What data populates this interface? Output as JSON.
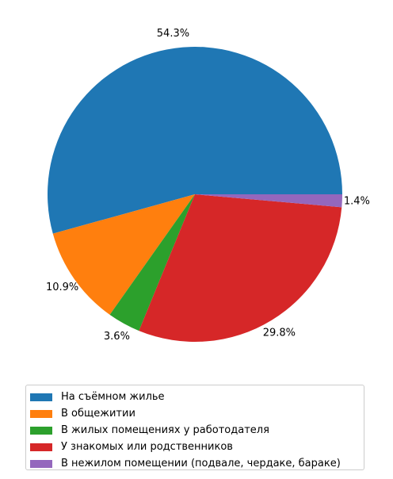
{
  "chart_data": {
    "type": "pie",
    "slices": [
      {
        "label": "На съёмном жилье",
        "value": 54.3,
        "value_label": "54.3%",
        "color": "#1f77b4"
      },
      {
        "label": "В общежитии",
        "value": 10.9,
        "value_label": "10.9%",
        "color": "#ff7f0e"
      },
      {
        "label": "В жилых помещениях у работодателя",
        "value": 3.6,
        "value_label": "3.6%",
        "color": "#2ca02c"
      },
      {
        "label": "У знакомых или родственников",
        "value": 29.8,
        "value_label": "29.8%",
        "color": "#d62728"
      },
      {
        "label": "В нежилом помещении (подвале, чердаке, бараке)",
        "value": 1.4,
        "value_label": "1.4%",
        "color": "#9467bd"
      }
    ],
    "start_angle": 0,
    "direction": "counterclockwise",
    "legend_position": "bottom"
  }
}
